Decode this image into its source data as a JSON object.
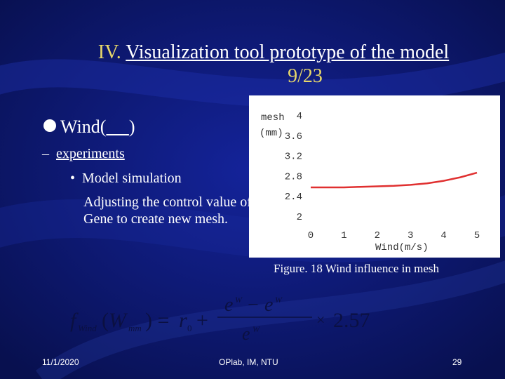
{
  "slide": {
    "title_number": "IV.",
    "title_main": "Visualization tool prototype of the model",
    "title_page": "9/23",
    "bullet_label": "Wind(",
    "bullet_blank": "     ",
    "bullet_close": ")",
    "sub_bullet": "experiments",
    "item": "Model simulation",
    "paragraph": "Adjusting the control value of Gene to create new mesh.",
    "caption": "Figure. 18 Wind influence in mesh",
    "footer_date": "11/1/2020",
    "footer_center": "OPlab, IM, NTU",
    "footer_page": "29"
  },
  "colors": {
    "background": "#0a1664",
    "accent": "#e8d86a",
    "line": "#e03030"
  },
  "chart_data": {
    "type": "line",
    "ylabel": "mesh",
    "yunit": "(mm)",
    "xlabel": "Wind(m/s)",
    "x_ticks": [
      "0",
      "1",
      "2",
      "3",
      "4",
      "5"
    ],
    "y_ticks": [
      "2",
      "2.4",
      "2.8",
      "3.2",
      "3.6",
      "4"
    ],
    "xlim": [
      0,
      5
    ],
    "ylim": [
      2,
      4
    ],
    "series": [
      {
        "x": [
          0,
          0.5,
          1,
          1.5,
          2,
          2.5,
          3,
          3.5,
          4,
          4.5,
          5
        ],
        "y": [
          2.57,
          2.57,
          2.57,
          2.58,
          2.59,
          2.6,
          2.62,
          2.65,
          2.7,
          2.77,
          2.86
        ]
      }
    ]
  }
}
